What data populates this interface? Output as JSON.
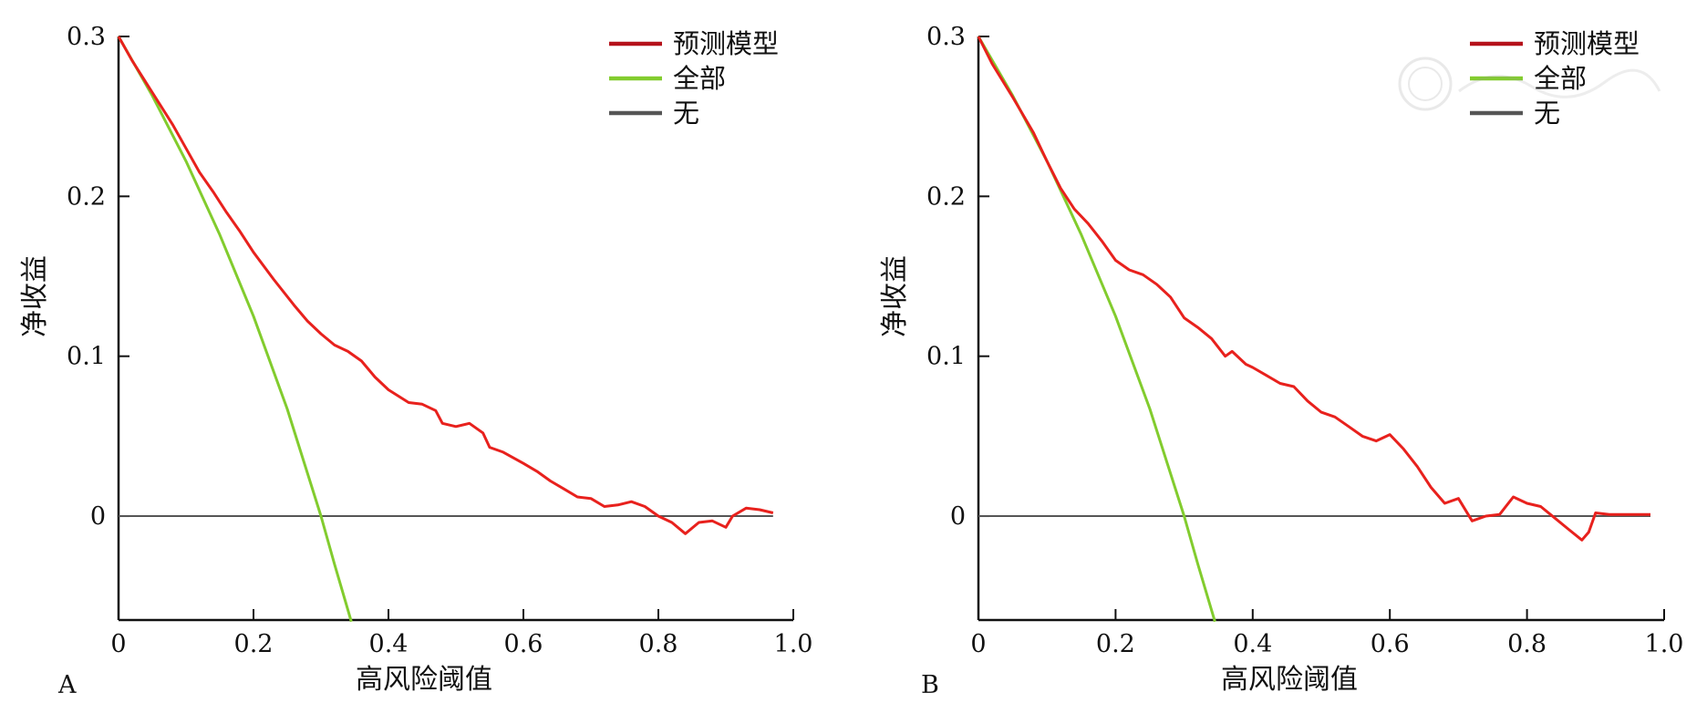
{
  "chart_data": [
    {
      "type": "line",
      "panel_label": "A",
      "xlabel": "高风险阈值",
      "ylabel": "净收益",
      "xlim": [
        0,
        1.0
      ],
      "ylim": [
        -0.065,
        0.3
      ],
      "x_ticks": [
        0,
        0.2,
        0.4,
        0.6,
        0.8,
        1.0
      ],
      "x_tick_labels": [
        "0",
        "0.2",
        "0.4",
        "0.6",
        "0.8",
        "1.0"
      ],
      "y_ticks": [
        0,
        0.1,
        0.2,
        0.3
      ],
      "y_tick_labels": [
        "0",
        "0.1",
        "0.2",
        "0.3"
      ],
      "legend_position": "top-right",
      "grid": false,
      "series": [
        {
          "name": "预测模型",
          "color": "#e8211d",
          "x": [
            0.0,
            0.02,
            0.05,
            0.08,
            0.1,
            0.12,
            0.14,
            0.16,
            0.18,
            0.2,
            0.23,
            0.26,
            0.28,
            0.3,
            0.32,
            0.34,
            0.36,
            0.38,
            0.4,
            0.43,
            0.45,
            0.47,
            0.48,
            0.5,
            0.52,
            0.54,
            0.55,
            0.57,
            0.6,
            0.62,
            0.64,
            0.66,
            0.68,
            0.7,
            0.72,
            0.74,
            0.76,
            0.78,
            0.8,
            0.82,
            0.84,
            0.86,
            0.88,
            0.9,
            0.91,
            0.93,
            0.95,
            0.97
          ],
          "y": [
            0.3,
            0.285,
            0.265,
            0.245,
            0.23,
            0.215,
            0.203,
            0.19,
            0.178,
            0.165,
            0.148,
            0.132,
            0.122,
            0.114,
            0.107,
            0.103,
            0.097,
            0.087,
            0.079,
            0.071,
            0.07,
            0.066,
            0.058,
            0.056,
            0.058,
            0.052,
            0.043,
            0.04,
            0.033,
            0.028,
            0.022,
            0.017,
            0.012,
            0.011,
            0.006,
            0.007,
            0.009,
            0.006,
            0.0,
            -0.004,
            -0.011,
            -0.004,
            -0.003,
            -0.007,
            0.0,
            0.005,
            0.004,
            0.002
          ]
        },
        {
          "name": "全部",
          "color": "#82cc2e",
          "x": [
            0.0,
            0.05,
            0.1,
            0.15,
            0.2,
            0.25,
            0.3,
            0.32,
            0.345
          ],
          "y": [
            0.3,
            0.263,
            0.222,
            0.176,
            0.125,
            0.067,
            0.0,
            -0.03,
            -0.066
          ]
        },
        {
          "name": "无",
          "color": "#555555",
          "x": [
            0.0,
            0.97
          ],
          "y": [
            0.0,
            0.0
          ]
        }
      ]
    },
    {
      "type": "line",
      "panel_label": "B",
      "xlabel": "高风险阈值",
      "ylabel": "净收益",
      "xlim": [
        0,
        1.0
      ],
      "ylim": [
        -0.065,
        0.3
      ],
      "x_ticks": [
        0,
        0.2,
        0.4,
        0.6,
        0.8,
        1.0
      ],
      "x_tick_labels": [
        "0",
        "0.2",
        "0.4",
        "0.6",
        "0.8",
        "1.0"
      ],
      "y_ticks": [
        0,
        0.1,
        0.2,
        0.3
      ],
      "y_tick_labels": [
        "0",
        "0.1",
        "0.2",
        "0.3"
      ],
      "legend_position": "top-right",
      "grid": false,
      "series": [
        {
          "name": "预测模型",
          "color": "#e8211d",
          "x": [
            0.0,
            0.02,
            0.05,
            0.08,
            0.1,
            0.12,
            0.14,
            0.16,
            0.18,
            0.2,
            0.22,
            0.24,
            0.26,
            0.28,
            0.3,
            0.32,
            0.34,
            0.36,
            0.37,
            0.39,
            0.4,
            0.42,
            0.44,
            0.46,
            0.48,
            0.5,
            0.52,
            0.54,
            0.56,
            0.58,
            0.6,
            0.62,
            0.64,
            0.66,
            0.68,
            0.7,
            0.72,
            0.74,
            0.76,
            0.78,
            0.8,
            0.82,
            0.84,
            0.86,
            0.88,
            0.89,
            0.9,
            0.92,
            0.95,
            0.98
          ],
          "y": [
            0.3,
            0.283,
            0.262,
            0.24,
            0.222,
            0.205,
            0.192,
            0.183,
            0.172,
            0.16,
            0.154,
            0.151,
            0.145,
            0.137,
            0.124,
            0.118,
            0.111,
            0.1,
            0.103,
            0.095,
            0.093,
            0.088,
            0.083,
            0.081,
            0.072,
            0.065,
            0.062,
            0.056,
            0.05,
            0.047,
            0.051,
            0.042,
            0.031,
            0.018,
            0.008,
            0.011,
            -0.003,
            0.0,
            0.001,
            0.012,
            0.008,
            0.006,
            -0.001,
            -0.008,
            -0.015,
            -0.01,
            0.002,
            0.001,
            0.001,
            0.001
          ]
        },
        {
          "name": "全部",
          "color": "#82cc2e",
          "x": [
            0.0,
            0.05,
            0.1,
            0.15,
            0.2,
            0.25,
            0.3,
            0.32,
            0.345
          ],
          "y": [
            0.3,
            0.263,
            0.222,
            0.176,
            0.125,
            0.067,
            0.0,
            -0.03,
            -0.066
          ]
        },
        {
          "name": "无",
          "color": "#555555",
          "x": [
            0.0,
            0.98
          ],
          "y": [
            0.0,
            0.0
          ]
        }
      ]
    }
  ]
}
